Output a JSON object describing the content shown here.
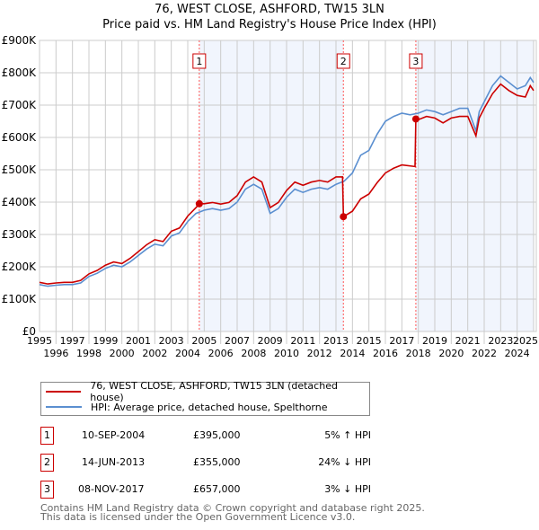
{
  "title": "76, WEST CLOSE, ASHFORD, TW15 3LN",
  "subtitle": "Price paid vs. HM Land Registry's House Price Index (HPI)",
  "chart_data": {
    "type": "line",
    "xlim": [
      1995,
      2025
    ],
    "ylim": [
      0,
      900000
    ],
    "x_ticks": [
      "1995",
      "1996",
      "1997",
      "1998",
      "1999",
      "2000",
      "2001",
      "2002",
      "2003",
      "2004",
      "2005",
      "2006",
      "2007",
      "2008",
      "2009",
      "2010",
      "2011",
      "2012",
      "2013",
      "2014",
      "2015",
      "2016",
      "2017",
      "2018",
      "2019",
      "2020",
      "2021",
      "2022",
      "2023",
      "2024",
      "2025"
    ],
    "y_ticks": [
      {
        "v": 0,
        "l": "£0"
      },
      {
        "v": 100000,
        "l": "£100K"
      },
      {
        "v": 200000,
        "l": "£200K"
      },
      {
        "v": 300000,
        "l": "£300K"
      },
      {
        "v": 400000,
        "l": "£400K"
      },
      {
        "v": 500000,
        "l": "£500K"
      },
      {
        "v": 600000,
        "l": "£600K"
      },
      {
        "v": 700000,
        "l": "£700K"
      },
      {
        "v": 800000,
        "l": "£800K"
      },
      {
        "v": 900000,
        "l": "£900K"
      }
    ],
    "grid": true,
    "shaded_ranges": [
      [
        2004.7,
        2013.45
      ],
      [
        2017.85,
        2025
      ]
    ],
    "series": [
      {
        "name": "76, WEST CLOSE, ASHFORD, TW15 3LN (detached house)",
        "color": "#cc0000",
        "x": [
          1995,
          1995.5,
          1996,
          1996.5,
          1997,
          1997.5,
          1998,
          1998.5,
          1999,
          1999.5,
          2000,
          2000.5,
          2001,
          2001.5,
          2002,
          2002.5,
          2003,
          2003.5,
          2004,
          2004.5,
          2004.7,
          2005,
          2005.5,
          2006,
          2006.5,
          2007,
          2007.5,
          2008,
          2008.5,
          2009,
          2009.5,
          2010,
          2010.5,
          2011,
          2011.5,
          2012,
          2012.5,
          2013,
          2013.4,
          2013.45,
          2014,
          2014.5,
          2015,
          2015.5,
          2016,
          2016.5,
          2017,
          2017.8,
          2017.85,
          2018,
          2018.5,
          2019,
          2019.5,
          2020,
          2020.5,
          2021,
          2021.5,
          2021.7,
          2022,
          2022.5,
          2023,
          2023.5,
          2024,
          2024.5,
          2024.8,
          2025
        ],
        "y": [
          152,
          147,
          150,
          152,
          152,
          158,
          178,
          189,
          205,
          215,
          210,
          226,
          247,
          268,
          284,
          278,
          310,
          320,
          357,
          383,
          395,
          395,
          399,
          394,
          399,
          420,
          462,
          478,
          462,
          383,
          399,
          436,
          462,
          452,
          462,
          467,
          462,
          478,
          478,
          355,
          372,
          410,
          425,
          460,
          490,
          505,
          515,
          510,
          657,
          655,
          665,
          660,
          645,
          660,
          665,
          665,
          605,
          660,
          690,
          735,
          765,
          745,
          730,
          725,
          760,
          745
        ]
      },
      {
        "name": "HPI: Average price, detached house, Spelthorne",
        "color": "#5b8fd0",
        "x": [
          1995,
          1995.5,
          1996,
          1996.5,
          1997,
          1997.5,
          1998,
          1998.5,
          1999,
          1999.5,
          2000,
          2000.5,
          2001,
          2001.5,
          2002,
          2002.5,
          2003,
          2003.5,
          2004,
          2004.5,
          2005,
          2005.5,
          2006,
          2006.5,
          2007,
          2007.5,
          2008,
          2008.5,
          2009,
          2009.5,
          2010,
          2010.5,
          2011,
          2011.5,
          2012,
          2012.5,
          2013,
          2013.5,
          2014,
          2014.5,
          2015,
          2015.5,
          2016,
          2016.5,
          2017,
          2017.5,
          2018,
          2018.5,
          2019,
          2019.5,
          2020,
          2020.5,
          2021,
          2021.5,
          2021.7,
          2022,
          2022.5,
          2023,
          2023.5,
          2024,
          2024.5,
          2024.8,
          2025
        ],
        "y": [
          145,
          140,
          143,
          145,
          145,
          150,
          170,
          180,
          195,
          205,
          200,
          215,
          235,
          255,
          270,
          265,
          295,
          305,
          340,
          365,
          375,
          380,
          375,
          380,
          400,
          440,
          455,
          440,
          365,
          380,
          415,
          440,
          430,
          440,
          445,
          440,
          455,
          465,
          490,
          545,
          560,
          610,
          650,
          665,
          675,
          670,
          675,
          685,
          680,
          670,
          680,
          690,
          690,
          620,
          680,
          710,
          760,
          790,
          770,
          750,
          760,
          785,
          770
        ]
      }
    ],
    "y_unit": "£K",
    "sales": [
      {
        "n": "1",
        "x": 2004.7,
        "y": 395
      },
      {
        "n": "2",
        "x": 2013.45,
        "y": 355
      },
      {
        "n": "3",
        "x": 2017.85,
        "y": 657
      }
    ]
  },
  "legend": {
    "property": "76, WEST CLOSE, ASHFORD, TW15 3LN (detached house)",
    "hpi": "HPI: Average price, detached house, Spelthorne"
  },
  "transactions": [
    {
      "n": "1",
      "date": "10-SEP-2004",
      "price": "£395,000",
      "hpi": "5% ↑ HPI"
    },
    {
      "n": "2",
      "date": "14-JUN-2013",
      "price": "£355,000",
      "hpi": "24% ↓ HPI"
    },
    {
      "n": "3",
      "date": "08-NOV-2017",
      "price": "£657,000",
      "hpi": "3% ↓ HPI"
    }
  ],
  "footer": [
    "Contains HM Land Registry data © Crown copyright and database right 2025.",
    "This data is licensed under the Open Government Licence v3.0."
  ]
}
